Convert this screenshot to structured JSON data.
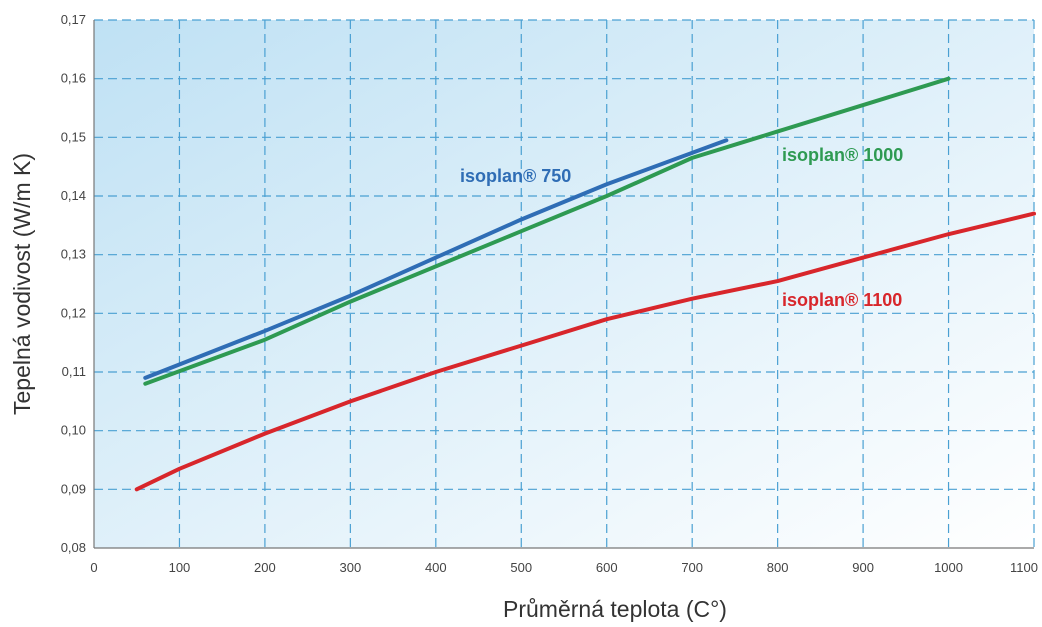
{
  "chart_data": {
    "type": "line",
    "title": "",
    "xlabel": "Průměrná teplota (C°)",
    "ylabel": "Tepelná vodivost (W/m K)",
    "xlim": [
      0,
      1100
    ],
    "ylim": [
      0.08,
      0.17
    ],
    "x_ticks": [
      "0",
      "100",
      "200",
      "300",
      "400",
      "500",
      "600",
      "700",
      "800",
      "900",
      "1000",
      "1100"
    ],
    "y_ticks": [
      "0,08",
      "0,09",
      "0,10",
      "0,11",
      "0,12",
      "0,13",
      "0,14",
      "0,15",
      "0,16",
      "0,17"
    ],
    "grid": true,
    "series": [
      {
        "name": "isoplan® 750",
        "color": "#2f6db5",
        "x": [
          60,
          200,
          300,
          400,
          500,
          600,
          740
        ],
        "y": [
          0.109,
          0.117,
          0.123,
          0.1295,
          0.136,
          0.142,
          0.1495
        ]
      },
      {
        "name": "isoplan® 1000",
        "color": "#2e9a52",
        "x": [
          60,
          200,
          300,
          400,
          500,
          600,
          700,
          800,
          900,
          1000
        ],
        "y": [
          0.108,
          0.1155,
          0.122,
          0.128,
          0.134,
          0.14,
          0.1465,
          0.151,
          0.1555,
          0.16
        ]
      },
      {
        "name": "isoplan® 1100",
        "color": "#d8262b",
        "x": [
          50,
          100,
          200,
          300,
          400,
          500,
          600,
          700,
          800,
          900,
          1000,
          1100
        ],
        "y": [
          0.09,
          0.0935,
          0.0995,
          0.105,
          0.11,
          0.1145,
          0.119,
          0.1225,
          0.1255,
          0.1295,
          0.1335,
          0.137
        ]
      }
    ]
  }
}
